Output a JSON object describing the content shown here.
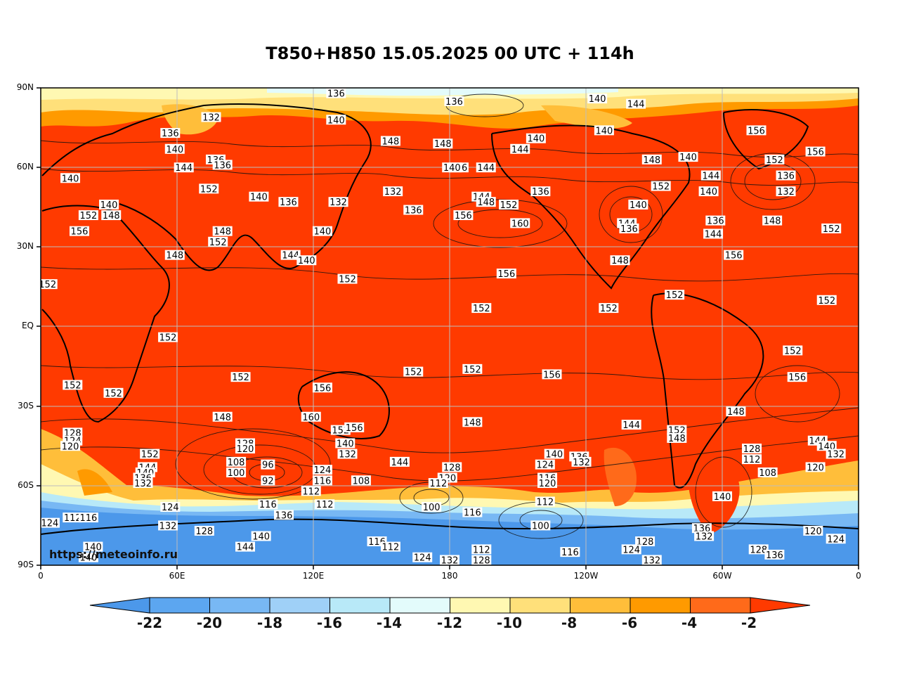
{
  "title": "T850+H850 15.05.2025 00 UTC + 114h",
  "credit": "https://meteoinfo.ru",
  "lat_labels": [
    "90N",
    "60N",
    "30N",
    "EQ",
    "30S",
    "60S",
    "90S"
  ],
  "lon_labels": [
    "0",
    "60E",
    "120E",
    "180",
    "120W",
    "60W",
    "0"
  ],
  "colorbar": {
    "labels": [
      "-22",
      "-20",
      "-18",
      "-16",
      "-14",
      "-12",
      "-10",
      "-8",
      "-6",
      "-4",
      "-2"
    ],
    "colors": [
      "#4c98ea",
      "#5ca6f0",
      "#78b8f4",
      "#9fd0f7",
      "#b8e9f8",
      "#e3fbfb",
      "#fff8b2",
      "#ffe07a",
      "#ffbe3a",
      "#ff9a00",
      "#ff6a1a",
      "#ff3a00"
    ]
  },
  "contour_labels": [
    {
      "t": "136",
      "lon": 130,
      "lat": 88
    },
    {
      "t": "140",
      "lon": 130,
      "lat": 78
    },
    {
      "t": "132",
      "lon": 75,
      "lat": 79
    },
    {
      "t": "136",
      "lon": 182,
      "lat": 85
    },
    {
      "t": "140",
      "lon": 245,
      "lat": 86
    },
    {
      "t": "144",
      "lon": 262,
      "lat": 84
    },
    {
      "t": "140",
      "lon": 248,
      "lat": 74
    },
    {
      "t": "140",
      "lon": 218,
      "lat": 71
    },
    {
      "t": "148",
      "lon": 154,
      "lat": 70
    },
    {
      "t": "148",
      "lon": 177,
      "lat": 69
    },
    {
      "t": "144",
      "lon": 211,
      "lat": 67
    },
    {
      "t": "148",
      "lon": 269,
      "lat": 63
    },
    {
      "t": "140",
      "lon": 285,
      "lat": 64
    },
    {
      "t": "156",
      "lon": 315,
      "lat": 74
    },
    {
      "t": "152",
      "lon": 323,
      "lat": 63
    },
    {
      "t": "156",
      "lon": 341,
      "lat": 66
    },
    {
      "t": "136",
      "lon": 328,
      "lat": 57
    },
    {
      "t": "132",
      "lon": 328,
      "lat": 51
    },
    {
      "t": "144",
      "lon": 295,
      "lat": 57
    },
    {
      "t": "140",
      "lon": 294,
      "lat": 51
    },
    {
      "t": "152",
      "lon": 273,
      "lat": 53
    },
    {
      "t": "136",
      "lon": 184,
      "lat": 60
    },
    {
      "t": "140",
      "lon": 181,
      "lat": 60
    },
    {
      "t": "144",
      "lon": 196,
      "lat": 60
    },
    {
      "t": "136",
      "lon": 220,
      "lat": 51
    },
    {
      "t": "144",
      "lon": 194,
      "lat": 49
    },
    {
      "t": "148",
      "lon": 196,
      "lat": 47
    },
    {
      "t": "152",
      "lon": 206,
      "lat": 46
    },
    {
      "t": "160",
      "lon": 211,
      "lat": 39
    },
    {
      "t": "156",
      "lon": 186,
      "lat": 42
    },
    {
      "t": "136",
      "lon": 164,
      "lat": 44
    },
    {
      "t": "132",
      "lon": 155,
      "lat": 51
    },
    {
      "t": "132",
      "lon": 131,
      "lat": 47
    },
    {
      "t": "136",
      "lon": 109,
      "lat": 47
    },
    {
      "t": "140",
      "lon": 96,
      "lat": 49
    },
    {
      "t": "152",
      "lon": 74,
      "lat": 52
    },
    {
      "t": "140",
      "lon": 13,
      "lat": 56
    },
    {
      "t": "144",
      "lon": 63,
      "lat": 60
    },
    {
      "t": "140",
      "lon": 59,
      "lat": 67
    },
    {
      "t": "136",
      "lon": 57,
      "lat": 73
    },
    {
      "t": "136",
      "lon": 77,
      "lat": 63
    },
    {
      "t": "136",
      "lon": 80,
      "lat": 61
    },
    {
      "t": "140",
      "lon": 30,
      "lat": 46
    },
    {
      "t": "148",
      "lon": 31,
      "lat": 42
    },
    {
      "t": "152",
      "lon": 21,
      "lat": 42
    },
    {
      "t": "156",
      "lon": 17,
      "lat": 36
    },
    {
      "t": "148",
      "lon": 80,
      "lat": 36
    },
    {
      "t": "152",
      "lon": 78,
      "lat": 32
    },
    {
      "t": "148",
      "lon": 59,
      "lat": 27
    },
    {
      "t": "140",
      "lon": 124,
      "lat": 36
    },
    {
      "t": "144",
      "lon": 110,
      "lat": 27
    },
    {
      "t": "140",
      "lon": 117,
      "lat": 25
    },
    {
      "t": "152",
      "lon": 3,
      "lat": 16
    },
    {
      "t": "152",
      "lon": 135,
      "lat": 18
    },
    {
      "t": "152",
      "lon": 194,
      "lat": 7
    },
    {
      "t": "156",
      "lon": 205,
      "lat": 20
    },
    {
      "t": "152",
      "lon": 250,
      "lat": 7
    },
    {
      "t": "148",
      "lon": 255,
      "lat": 25
    },
    {
      "t": "156",
      "lon": 305,
      "lat": 27
    },
    {
      "t": "152",
      "lon": 279,
      "lat": 12
    },
    {
      "t": "144",
      "lon": 258,
      "lat": 39
    },
    {
      "t": "136",
      "lon": 259,
      "lat": 37
    },
    {
      "t": "140",
      "lon": 263,
      "lat": 46
    },
    {
      "t": "136",
      "lon": 297,
      "lat": 40
    },
    {
      "t": "144",
      "lon": 296,
      "lat": 35
    },
    {
      "t": "148",
      "lon": 322,
      "lat": 40
    },
    {
      "t": "152",
      "lon": 348,
      "lat": 37
    },
    {
      "t": "152",
      "lon": 346,
      "lat": 10
    },
    {
      "t": "152",
      "lon": 56,
      "lat": -4
    },
    {
      "t": "152",
      "lon": 88,
      "lat": -19
    },
    {
      "t": "156",
      "lon": 124,
      "lat": -23
    },
    {
      "t": "152",
      "lon": 164,
      "lat": -17
    },
    {
      "t": "152",
      "lon": 190,
      "lat": -16
    },
    {
      "t": "156",
      "lon": 225,
      "lat": -18
    },
    {
      "t": "152",
      "lon": 331,
      "lat": -9
    },
    {
      "t": "156",
      "lon": 333,
      "lat": -19
    },
    {
      "t": "148",
      "lon": 306,
      "lat": -32
    },
    {
      "t": "152",
      "lon": 14,
      "lat": -22
    },
    {
      "t": "152",
      "lon": 32,
      "lat": -25
    },
    {
      "t": "148",
      "lon": 80,
      "lat": -34
    },
    {
      "t": "160",
      "lon": 119,
      "lat": -34
    },
    {
      "t": "148",
      "lon": 190,
      "lat": -36
    },
    {
      "t": "144",
      "lon": 260,
      "lat": -37
    },
    {
      "t": "152",
      "lon": 280,
      "lat": -39
    },
    {
      "t": "148",
      "lon": 280,
      "lat": -42
    },
    {
      "t": "128",
      "lon": 14,
      "lat": -40
    },
    {
      "t": "124",
      "lon": 14,
      "lat": -43
    },
    {
      "t": "120",
      "lon": 13,
      "lat": -45
    },
    {
      "t": "152",
      "lon": 48,
      "lat": -48
    },
    {
      "t": "144",
      "lon": 47,
      "lat": -53
    },
    {
      "t": "140",
      "lon": 46,
      "lat": -55
    },
    {
      "t": "136",
      "lon": 45,
      "lat": -57
    },
    {
      "t": "132",
      "lon": 45,
      "lat": -59
    },
    {
      "t": "128",
      "lon": 90,
      "lat": -44
    },
    {
      "t": "120",
      "lon": 90,
      "lat": -46
    },
    {
      "t": "108",
      "lon": 86,
      "lat": -51
    },
    {
      "t": "100",
      "lon": 86,
      "lat": -55
    },
    {
      "t": "96",
      "lon": 100,
      "lat": -52
    },
    {
      "t": "92",
      "lon": 100,
      "lat": -58
    },
    {
      "t": "124",
      "lon": 124,
      "lat": -54
    },
    {
      "t": "116",
      "lon": 124,
      "lat": -58
    },
    {
      "t": "112",
      "lon": 119,
      "lat": -62
    },
    {
      "t": "108",
      "lon": 141,
      "lat": -58
    },
    {
      "t": "140",
      "lon": 134,
      "lat": -44
    },
    {
      "t": "132",
      "lon": 135,
      "lat": -48
    },
    {
      "t": "152",
      "lon": 132,
      "lat": -39
    },
    {
      "t": "156",
      "lon": 138,
      "lat": -38
    },
    {
      "t": "144",
      "lon": 158,
      "lat": -51
    },
    {
      "t": "128",
      "lon": 181,
      "lat": -53
    },
    {
      "t": "120",
      "lon": 179,
      "lat": -57
    },
    {
      "t": "112",
      "lon": 175,
      "lat": -59
    },
    {
      "t": "100",
      "lon": 172,
      "lat": -68
    },
    {
      "t": "116",
      "lon": 190,
      "lat": -70
    },
    {
      "t": "140",
      "lon": 226,
      "lat": -48
    },
    {
      "t": "124",
      "lon": 222,
      "lat": -52
    },
    {
      "t": "116",
      "lon": 223,
      "lat": -57
    },
    {
      "t": "120",
      "lon": 223,
      "lat": -59
    },
    {
      "t": "112",
      "lon": 222,
      "lat": -66
    },
    {
      "t": "100",
      "lon": 220,
      "lat": -75
    },
    {
      "t": "136",
      "lon": 237,
      "lat": -49
    },
    {
      "t": "132",
      "lon": 238,
      "lat": -51
    },
    {
      "t": "128",
      "lon": 313,
      "lat": -46
    },
    {
      "t": "112",
      "lon": 313,
      "lat": -50
    },
    {
      "t": "108",
      "lon": 320,
      "lat": -55
    },
    {
      "t": "144",
      "lon": 342,
      "lat": -43
    },
    {
      "t": "140",
      "lon": 346,
      "lat": -45
    },
    {
      "t": "132",
      "lon": 350,
      "lat": -48
    },
    {
      "t": "120",
      "lon": 341,
      "lat": -53
    },
    {
      "t": "140",
      "lon": 300,
      "lat": -64
    },
    {
      "t": "136",
      "lon": 291,
      "lat": -76
    },
    {
      "t": "132",
      "lon": 292,
      "lat": -79
    },
    {
      "t": "120",
      "lon": 340,
      "lat": -77
    },
    {
      "t": "124",
      "lon": 350,
      "lat": -80
    },
    {
      "t": "128",
      "lon": 316,
      "lat": -84
    },
    {
      "t": "136",
      "lon": 323,
      "lat": -86
    },
    {
      "t": "128",
      "lon": 266,
      "lat": -81
    },
    {
      "t": "124",
      "lon": 260,
      "lat": -84
    },
    {
      "t": "132",
      "lon": 269,
      "lat": -88
    },
    {
      "t": "116",
      "lon": 233,
      "lat": -85
    },
    {
      "t": "112",
      "lon": 194,
      "lat": -84
    },
    {
      "t": "128",
      "lon": 194,
      "lat": -88
    },
    {
      "t": "124",
      "lon": 168,
      "lat": -87
    },
    {
      "t": "132",
      "lon": 180,
      "lat": -88
    },
    {
      "t": "116",
      "lon": 148,
      "lat": -81
    },
    {
      "t": "112",
      "lon": 154,
      "lat": -83
    },
    {
      "t": "116",
      "lon": 100,
      "lat": -67
    },
    {
      "t": "136",
      "lon": 107,
      "lat": -71
    },
    {
      "t": "112",
      "lon": 125,
      "lat": -67
    },
    {
      "t": "124",
      "lon": 57,
      "lat": -68
    },
    {
      "t": "132",
      "lon": 56,
      "lat": -75
    },
    {
      "t": "128",
      "lon": 72,
      "lat": -77
    },
    {
      "t": "140",
      "lon": 97,
      "lat": -79
    },
    {
      "t": "144",
      "lon": 90,
      "lat": -83
    },
    {
      "t": "124",
      "lon": 4,
      "lat": -74
    },
    {
      "t": "112",
      "lon": 14,
      "lat": -72
    },
    {
      "t": "116",
      "lon": 21,
      "lat": -72
    },
    {
      "t": "140",
      "lon": 23,
      "lat": -83
    },
    {
      "t": "140",
      "lon": 21,
      "lat": -87
    }
  ]
}
